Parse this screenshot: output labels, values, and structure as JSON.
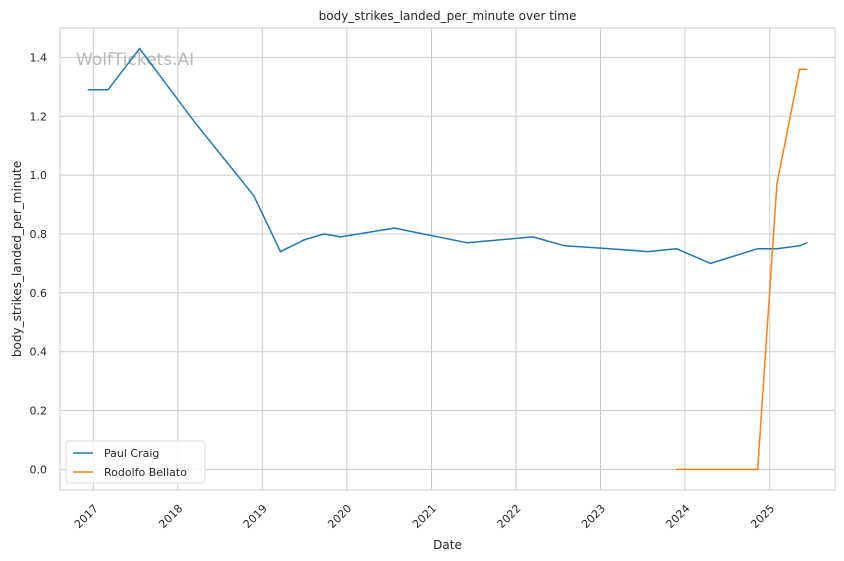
{
  "chart_data": {
    "type": "line",
    "title": "body_strikes_landed_per_minute over time",
    "xlabel": "Date",
    "ylabel": "body_strikes_landed_per_minute",
    "watermark": "WolfTickets.AI",
    "xlim": [
      "2016-08-10",
      "2025-10-10"
    ],
    "ylim": [
      -0.07,
      1.5
    ],
    "x_ticks": [
      "2017",
      "2018",
      "2019",
      "2020",
      "2021",
      "2022",
      "2023",
      "2024",
      "2025"
    ],
    "y_ticks": [
      0.0,
      0.2,
      0.4,
      0.6,
      0.8,
      1.0,
      1.2,
      1.4
    ],
    "y_tick_labels": [
      "0.0",
      "0.2",
      "0.4",
      "0.6",
      "0.8",
      "1.0",
      "1.2",
      "1.4"
    ],
    "grid": true,
    "legend_position": "lower-left",
    "series": [
      {
        "name": "Paul Craig",
        "color": "#1f77b4",
        "points": [
          {
            "x": "2016-12-10",
            "y": 1.29
          },
          {
            "x": "2017-03-05",
            "y": 1.29
          },
          {
            "x": "2017-07-20",
            "y": 1.43
          },
          {
            "x": "2018-03-15",
            "y": 1.18
          },
          {
            "x": "2018-11-25",
            "y": 0.93
          },
          {
            "x": "2019-03-20",
            "y": 0.74
          },
          {
            "x": "2019-06-30",
            "y": 0.78
          },
          {
            "x": "2019-09-25",
            "y": 0.8
          },
          {
            "x": "2019-12-05",
            "y": 0.79
          },
          {
            "x": "2020-07-25",
            "y": 0.82
          },
          {
            "x": "2021-06-05",
            "y": 0.77
          },
          {
            "x": "2022-03-15",
            "y": 0.79
          },
          {
            "x": "2022-07-30",
            "y": 0.76
          },
          {
            "x": "2023-02-10",
            "y": 0.75
          },
          {
            "x": "2023-07-25",
            "y": 0.74
          },
          {
            "x": "2023-11-25",
            "y": 0.75
          },
          {
            "x": "2024-04-20",
            "y": 0.7
          },
          {
            "x": "2024-11-10",
            "y": 0.75
          },
          {
            "x": "2025-02-01",
            "y": 0.75
          },
          {
            "x": "2025-05-10",
            "y": 0.76
          },
          {
            "x": "2025-06-10",
            "y": 0.77
          }
        ]
      },
      {
        "name": "Rodolfo Bellato",
        "color": "#ff7f0e",
        "points": [
          {
            "x": "2023-11-25",
            "y": 0.0
          },
          {
            "x": "2024-11-10",
            "y": 0.0
          },
          {
            "x": "2025-02-01",
            "y": 0.97
          },
          {
            "x": "2025-05-10",
            "y": 1.36
          },
          {
            "x": "2025-06-10",
            "y": 1.36
          }
        ]
      }
    ]
  }
}
